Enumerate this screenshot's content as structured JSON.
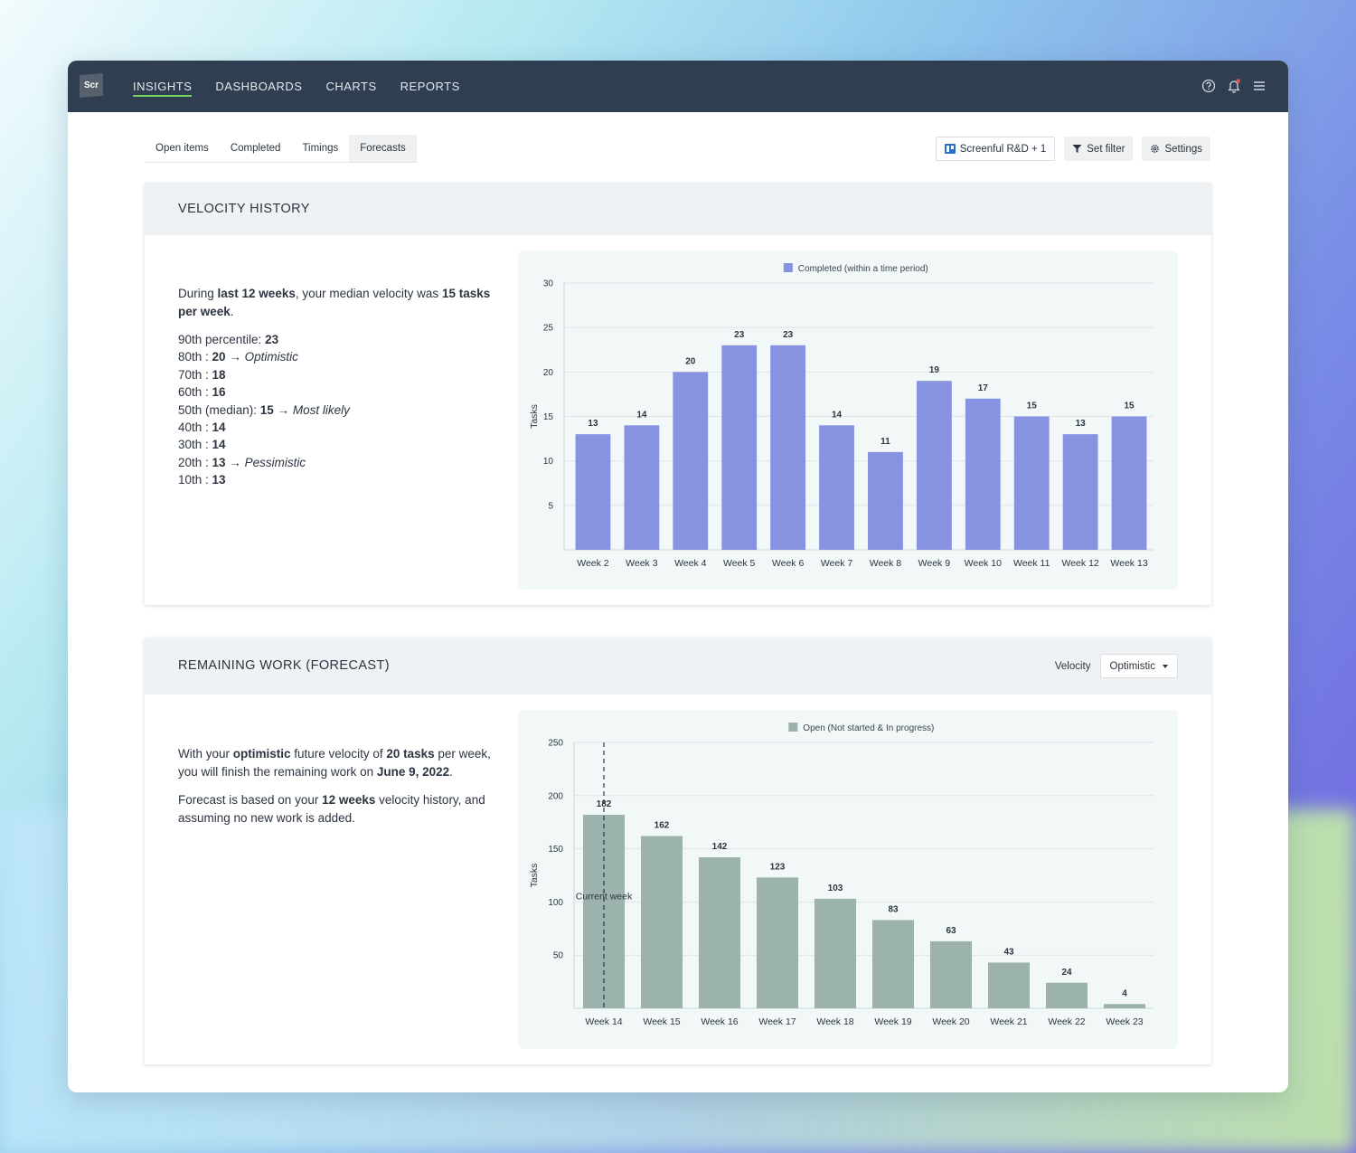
{
  "app": {
    "logo_text": "Scr",
    "nav": [
      "INSIGHTS",
      "DASHBOARDS",
      "CHARTS",
      "REPORTS"
    ],
    "active_nav": "INSIGHTS",
    "icons": [
      "help-circle-icon",
      "bell-icon",
      "hamburger-menu-icon"
    ],
    "accent_color": "#7bd35f",
    "topbar_color": "#2f3f51"
  },
  "tabs": [
    "Open items",
    "Completed",
    "Timings",
    "Forecasts"
  ],
  "active_tab": "Forecasts",
  "toolbar": {
    "board": "Screenful R&D + 1",
    "filter": "Set filter",
    "settings": "Settings"
  },
  "velocity_history": {
    "title": "VELOCITY HISTORY",
    "summary": {
      "t1": "During ",
      "b1": "last 12 weeks",
      "t2": ", your median velocity was ",
      "b2": "15 tasks per week",
      "t3": "."
    },
    "percentiles": [
      {
        "label": "90th percentile: ",
        "value": "23",
        "note": ""
      },
      {
        "label": "80th : ",
        "value": "20",
        "note": "Optimistic"
      },
      {
        "label": "70th : ",
        "value": "18",
        "note": ""
      },
      {
        "label": "60th : ",
        "value": "16",
        "note": ""
      },
      {
        "label": "50th (median): ",
        "value": "15",
        "note": "Most likely"
      },
      {
        "label": "40th : ",
        "value": "14",
        "note": ""
      },
      {
        "label": "30th : ",
        "value": "14",
        "note": ""
      },
      {
        "label": "20th : ",
        "value": "13",
        "note": "Pessimistic"
      },
      {
        "label": "10th : ",
        "value": "13",
        "note": ""
      }
    ],
    "arrow": "→"
  },
  "remaining_work": {
    "title": "REMAINING WORK (FORECAST)",
    "velocity_label": "Velocity",
    "velocity_selected": "Optimistic",
    "summary": {
      "t1": "With your ",
      "b1": "optimistic",
      "t2": " future velocity of ",
      "b2": "20 tasks",
      "t3": " per week, you will finish the remaining work on ",
      "b3": "June 9, 2022",
      "t4": "."
    },
    "note": {
      "t1": "Forecast is based on your ",
      "b1": "12 weeks",
      "t2": " velocity history, and assuming no new work is added."
    }
  },
  "chart_data": [
    {
      "type": "bar",
      "legend": "Completed (within a time period)",
      "ylabel": "Tasks",
      "ylim": [
        0,
        30
      ],
      "yticks": [
        5,
        10,
        15,
        20,
        25,
        30
      ],
      "color": "#8792e0",
      "categories": [
        "Week 2",
        "Week 3",
        "Week 4",
        "Week 5",
        "Week 6",
        "Week 7",
        "Week 8",
        "Week 9",
        "Week 10",
        "Week 11",
        "Week 12",
        "Week 13"
      ],
      "values": [
        13,
        14,
        20,
        23,
        23,
        14,
        11,
        19,
        17,
        15,
        13,
        15
      ]
    },
    {
      "type": "bar",
      "legend": "Open (Not started & In progress)",
      "ylabel": "Tasks",
      "ylim": [
        0,
        250
      ],
      "yticks": [
        50,
        100,
        150,
        200,
        250
      ],
      "color": "#9cb3ad",
      "categories": [
        "Week 14",
        "Week 15",
        "Week 16",
        "Week 17",
        "Week 18",
        "Week 19",
        "Week 20",
        "Week 21",
        "Week 22",
        "Week 23"
      ],
      "values": [
        182,
        162,
        142,
        123,
        103,
        83,
        63,
        43,
        24,
        4
      ],
      "marker": {
        "category": "Week 14",
        "label": "Current week"
      }
    }
  ]
}
